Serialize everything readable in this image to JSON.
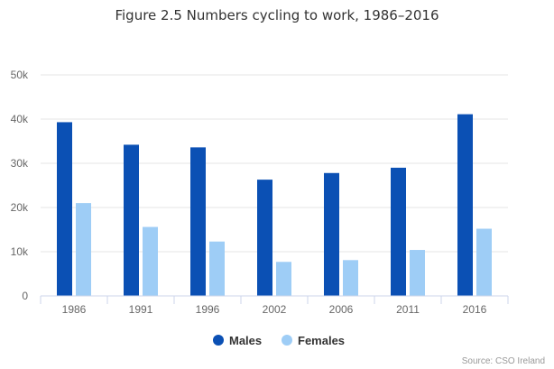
{
  "chart_data": {
    "type": "bar",
    "title": "Figure 2.5 Numbers cycling to work, 1986–2016",
    "categories": [
      "1986",
      "1991",
      "1996",
      "2002",
      "2006",
      "2011",
      "2016"
    ],
    "series": [
      {
        "name": "Males",
        "color": "#0b50b4",
        "values": [
          39300,
          34200,
          33600,
          26300,
          27800,
          29000,
          41100
        ]
      },
      {
        "name": "Females",
        "color": "#9ecdf6",
        "values": [
          21000,
          15600,
          12300,
          7700,
          8100,
          10400,
          15200
        ]
      }
    ],
    "ylim": [
      0,
      50000
    ],
    "yticks": [
      "0",
      "10k",
      "20k",
      "30k",
      "40k",
      "50k"
    ],
    "grid": true,
    "legend": "bottom-center",
    "credit": "Source: CSO Ireland"
  }
}
